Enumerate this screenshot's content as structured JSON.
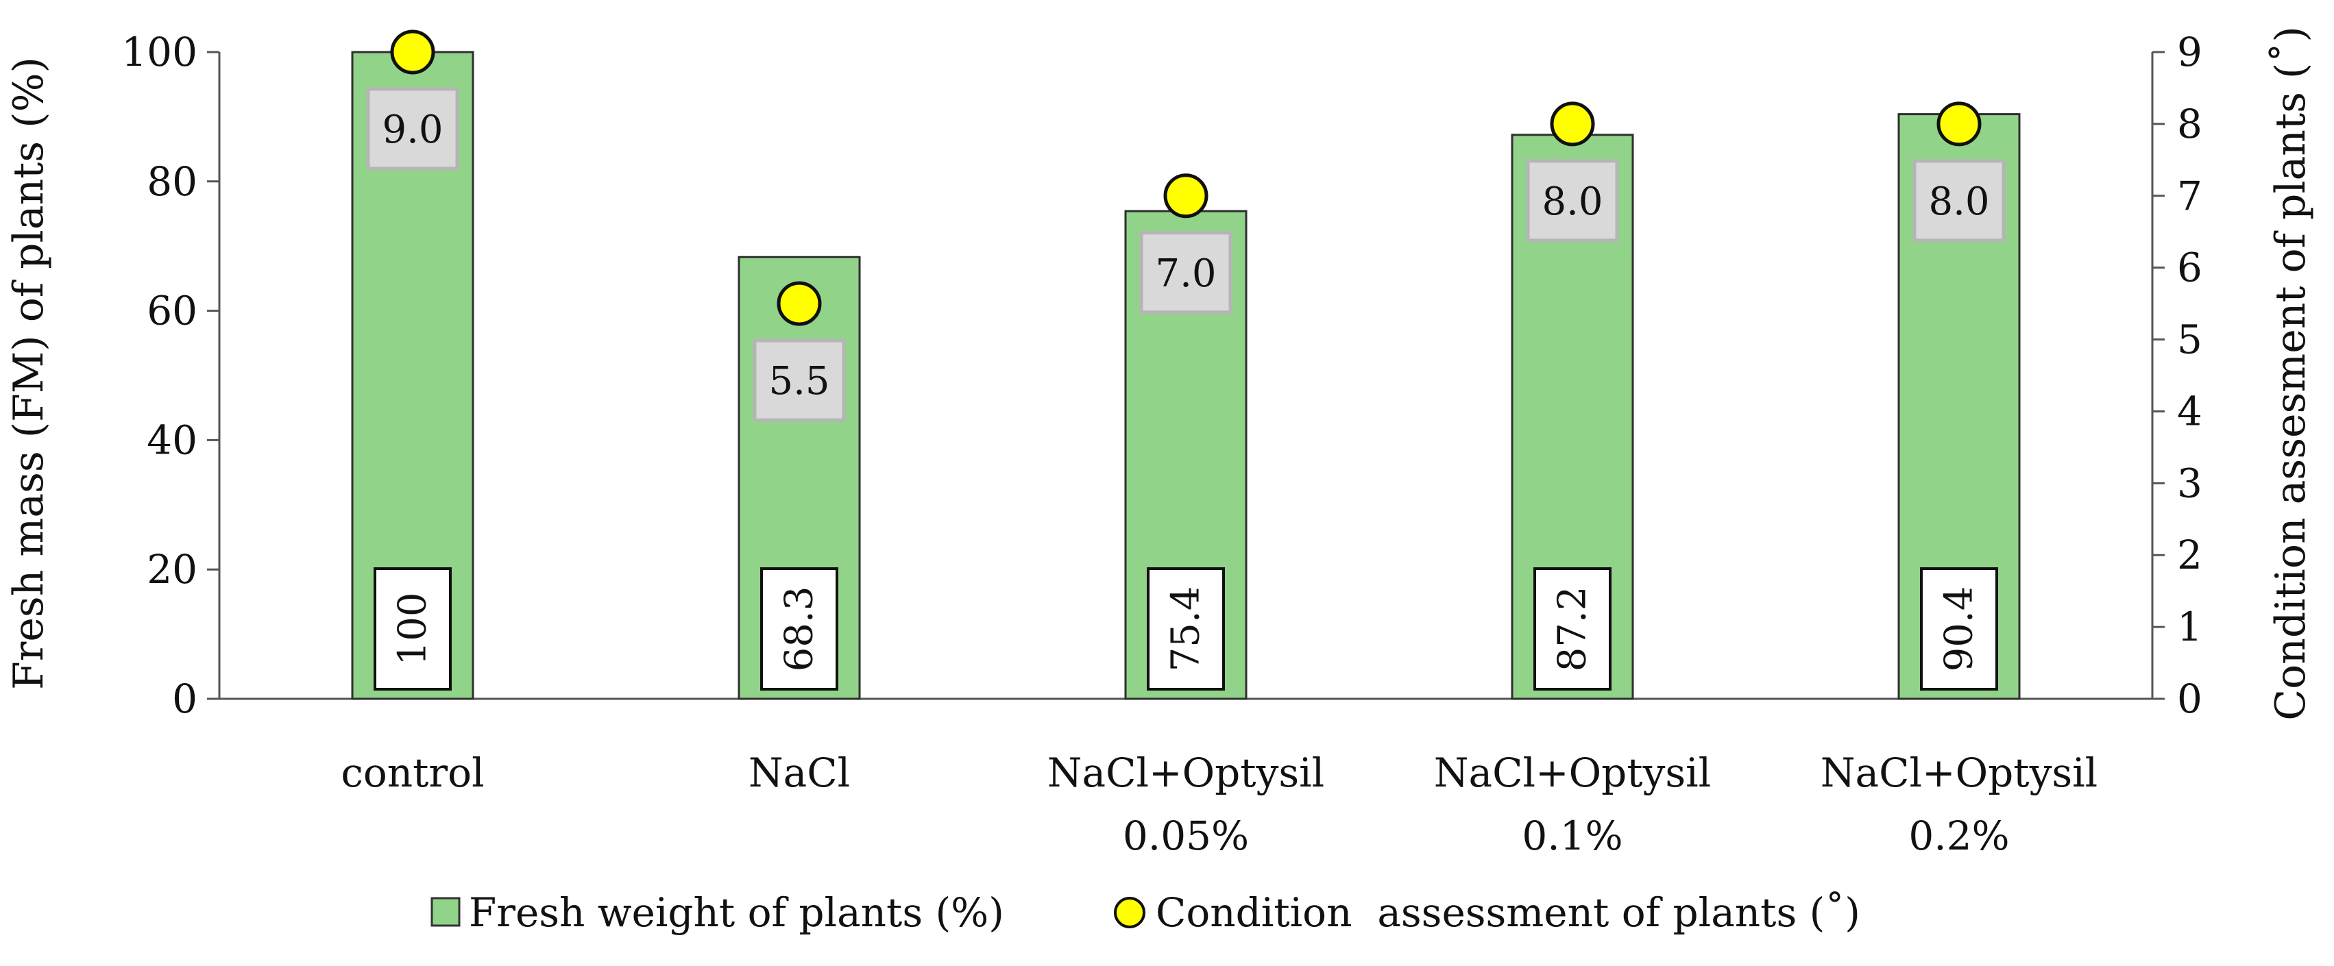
{
  "chart_data": {
    "type": "bar",
    "categories": [
      [
        "control"
      ],
      [
        "NaCl"
      ],
      [
        "NaCl+Optysil",
        "0.05%"
      ],
      [
        "NaCl+Optysil",
        "0.1%"
      ],
      [
        "NaCl+Optysil",
        "0.2%"
      ]
    ],
    "series": [
      {
        "name": "Fresh weight of plants (%)",
        "kind": "bar",
        "axis": "left",
        "values": [
          100,
          68.3,
          75.4,
          87.2,
          90.4
        ],
        "labels": [
          "100",
          "68.3",
          "75.4",
          "87.2",
          "90.4"
        ],
        "color": "#92d38a"
      },
      {
        "name": "Condition  assessment of plants (˚)",
        "kind": "marker",
        "axis": "right",
        "values": [
          9.0,
          5.5,
          7.0,
          8.0,
          8.0
        ],
        "labels": [
          "9.0",
          "5.5",
          "7.0",
          "8.0",
          "8.0"
        ],
        "color": "#ffff00"
      }
    ],
    "ylabel": "Fresh  mass (FM) of plants (%)",
    "y2label": "Condition  assesment of plants (˚)",
    "ylim": [
      0,
      100
    ],
    "y2lim": [
      0,
      9
    ],
    "yticks": [
      "0",
      "20",
      "40",
      "60",
      "80",
      "100"
    ],
    "y2ticks": [
      "0",
      "1",
      "2",
      "3",
      "4",
      "5",
      "6",
      "7",
      "8",
      "9"
    ],
    "grid": false,
    "legend_position": "bottom"
  }
}
